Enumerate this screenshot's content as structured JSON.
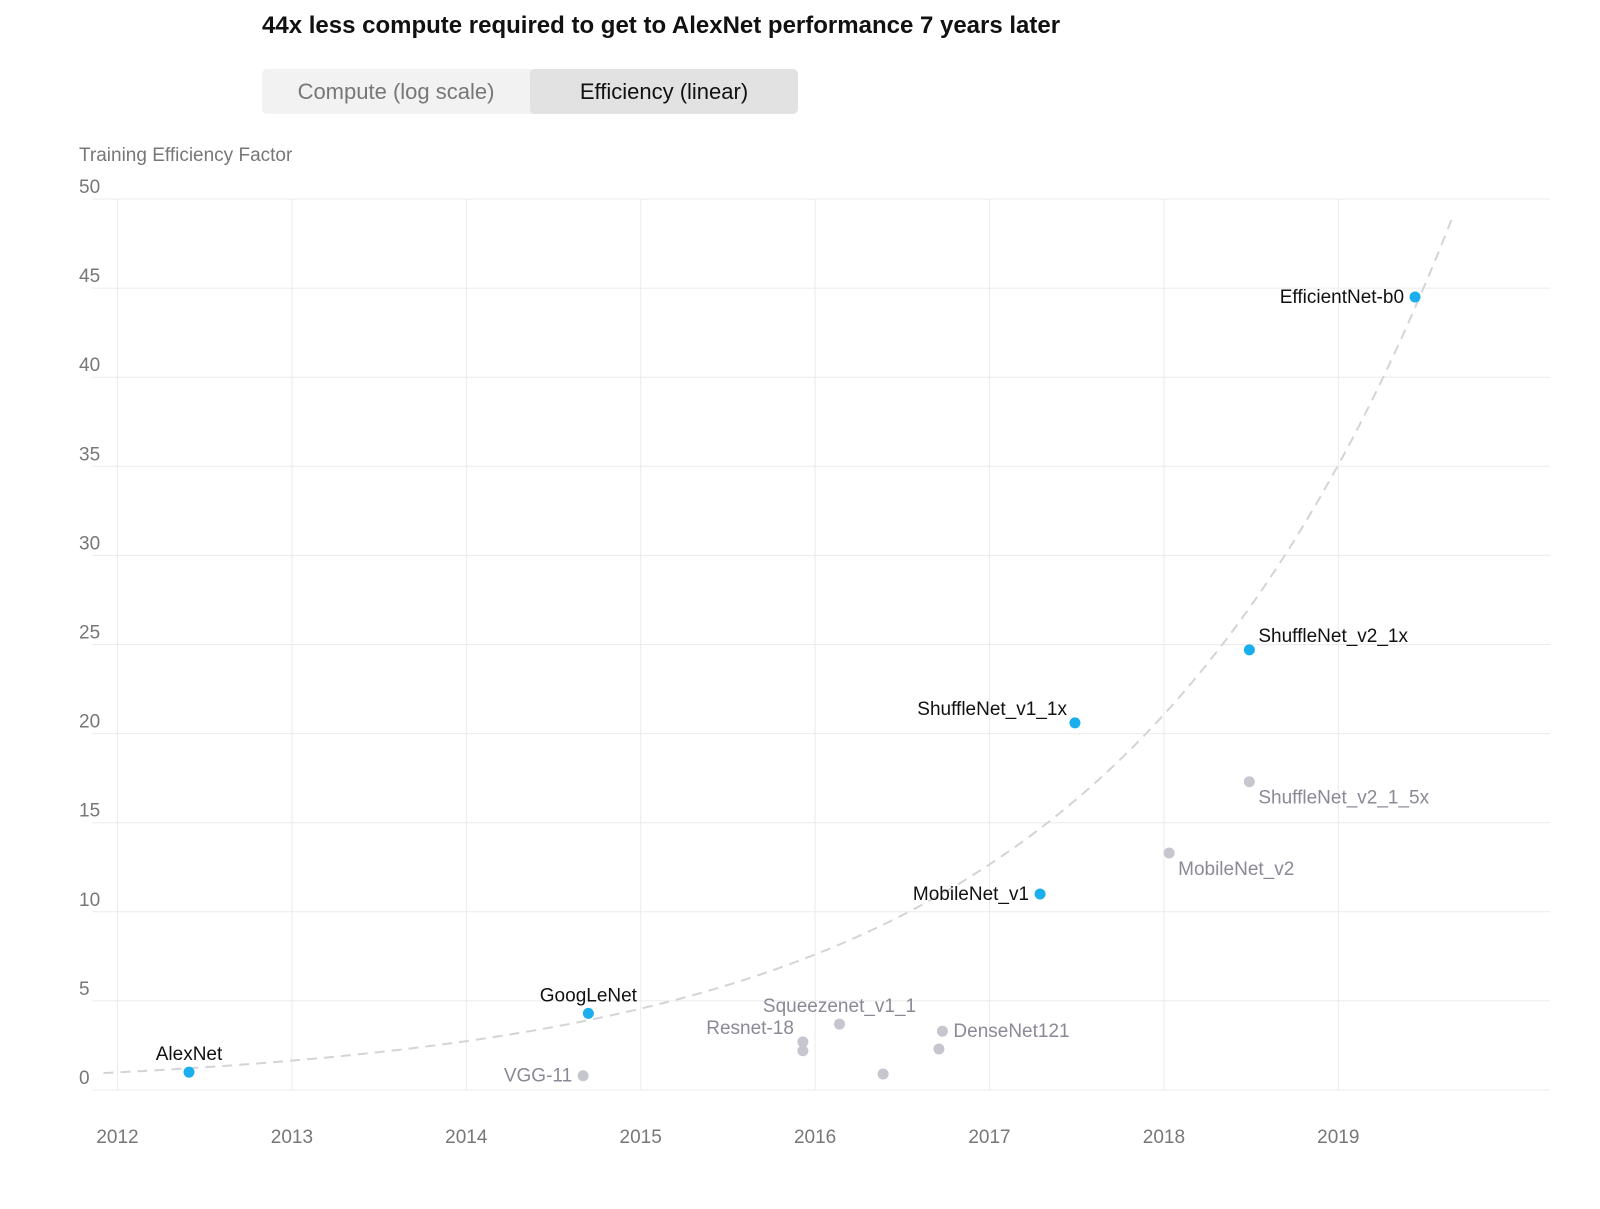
{
  "title": "44x less compute required to get to AlexNet performance 7 years later",
  "toggle": {
    "options": [
      {
        "label": "Compute (log scale)",
        "selected": false
      },
      {
        "label": "Efficiency (linear)",
        "selected": true
      }
    ]
  },
  "chart_data": {
    "type": "scatter",
    "title": "44x less compute required to get to AlexNet performance 7 years later",
    "ylabel": "Training Efficiency Factor",
    "xlabel": "",
    "ylim": [
      0,
      50
    ],
    "xlim": [
      2011.9,
      2020.2
    ],
    "x_ticks": [
      "2012",
      "2013",
      "2014",
      "2015",
      "2016",
      "2017",
      "2018",
      "2019"
    ],
    "y_ticks": [
      "0",
      "5",
      "10",
      "15",
      "20",
      "25",
      "30",
      "35",
      "40",
      "45",
      "50"
    ],
    "grid": true,
    "colors": {
      "highlight": "#1aaeed",
      "other": "#c6c6cf",
      "trend": "#d4d4d8",
      "grid": "#ebebeb"
    },
    "points": [
      {
        "label": "AlexNet",
        "x": 2012.41,
        "y": 1.0,
        "highlight": true
      },
      {
        "label": "GoogLeNet",
        "x": 2014.7,
        "y": 4.3,
        "highlight": true
      },
      {
        "label": "VGG-11",
        "x": 2014.67,
        "y": 0.8,
        "highlight": false
      },
      {
        "label": "Resnet-18",
        "x": 2015.93,
        "y": 2.7,
        "highlight": false
      },
      {
        "label": "",
        "x": 2015.93,
        "y": 2.2,
        "highlight": false
      },
      {
        "label": "Squeezenet_v1_1",
        "x": 2016.14,
        "y": 3.7,
        "highlight": false
      },
      {
        "label": "",
        "x": 2016.39,
        "y": 0.9,
        "highlight": false
      },
      {
        "label": "",
        "x": 2016.71,
        "y": 2.3,
        "highlight": false
      },
      {
        "label": "DenseNet121",
        "x": 2016.73,
        "y": 3.3,
        "highlight": false
      },
      {
        "label": "MobileNet_v1",
        "x": 2017.29,
        "y": 11.0,
        "highlight": true
      },
      {
        "label": "ShuffleNet_v1_1x",
        "x": 2017.49,
        "y": 20.6,
        "highlight": true
      },
      {
        "label": "MobileNet_v2",
        "x": 2018.03,
        "y": 13.3,
        "highlight": false
      },
      {
        "label": "ShuffleNet_v2_1x",
        "x": 2018.49,
        "y": 24.7,
        "highlight": true
      },
      {
        "label": "ShuffleNet_v2_1_5x",
        "x": 2018.49,
        "y": 17.3,
        "highlight": false
      },
      {
        "label": "EfficientNet-b0",
        "x": 2019.44,
        "y": 44.5,
        "highlight": true
      }
    ],
    "trend": {
      "style": "dashed",
      "equation": "y = 0.99 * 2^((x - 2012.0) / 1.36)"
    }
  }
}
